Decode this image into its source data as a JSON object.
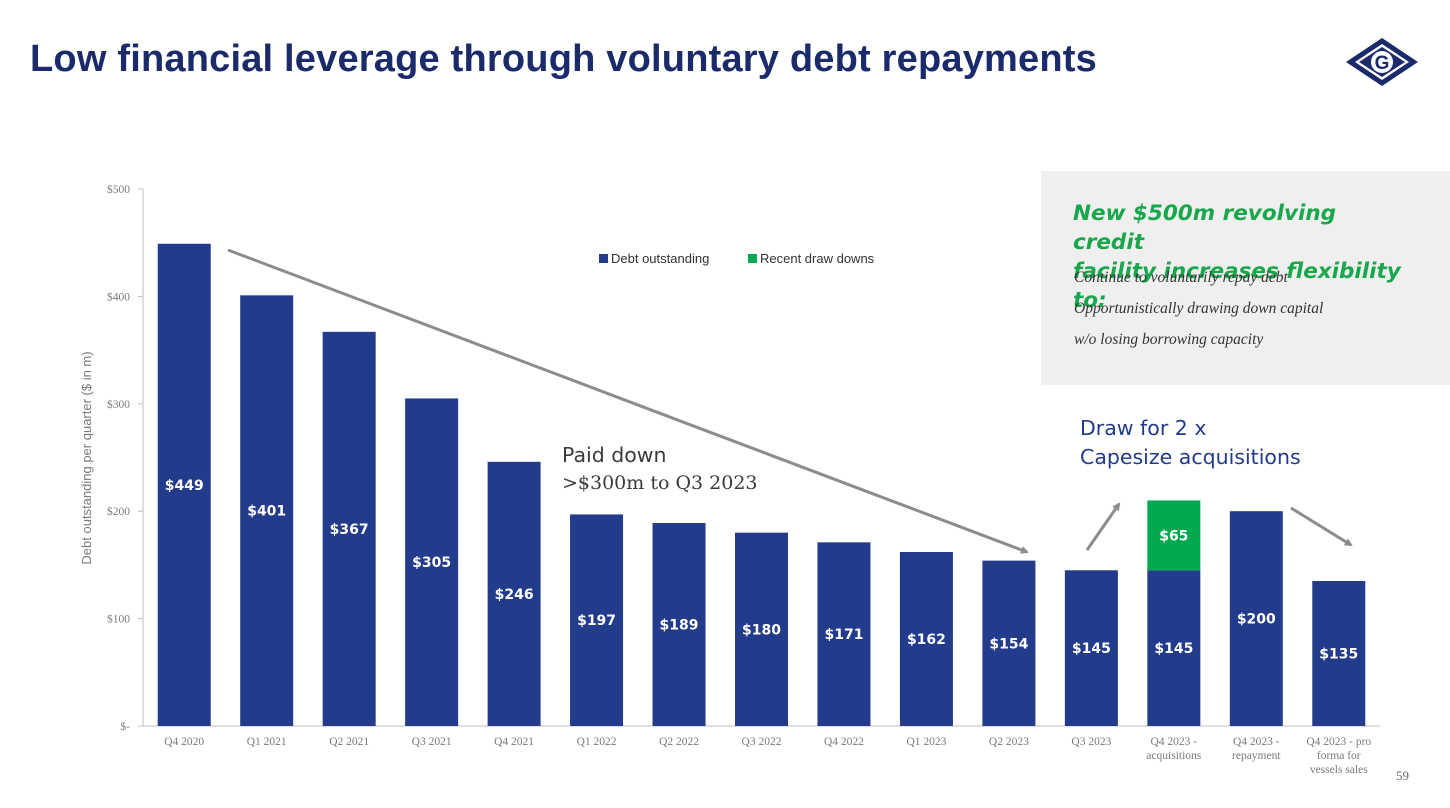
{
  "slide": {
    "title": "Low financial leverage through voluntary debt repayments",
    "page_number": "59",
    "logo_letter": "G"
  },
  "callout": {
    "headline_line1": "New $500m revolving credit",
    "headline_line2": "facility increases flexibility to:",
    "lines": [
      "Continue to voluntarily repay debt",
      "Opportunistically drawing down capital",
      "w/o losing borrowing capacity"
    ]
  },
  "annotations": {
    "paid_down_title": "Paid down",
    "paid_down_sub": ">$300m to Q3 2023",
    "draw_line1": "Draw for 2 x",
    "draw_line2": "Capesize acquisitions"
  },
  "colors": {
    "title": "#1b2a6b",
    "debt_outstanding": "#233b8b",
    "recent_draw_downs": "#00a94f",
    "arrow": "#8c8c8c",
    "axis_text": "#7a7a7a",
    "headline_green": "#19a74b",
    "annotation_blue": "#233a8a"
  },
  "chart_data": {
    "type": "bar",
    "stacked": true,
    "ylabel": "Debt outstanding per quarter ($ in m)",
    "ylim": [
      0,
      500
    ],
    "yticks": [
      {
        "value": 0,
        "label": "$-"
      },
      {
        "value": 100,
        "label": "$100"
      },
      {
        "value": 200,
        "label": "$200"
      },
      {
        "value": 300,
        "label": "$300"
      },
      {
        "value": 400,
        "label": "$400"
      },
      {
        "value": 500,
        "label": "$500"
      }
    ],
    "legend_position": "top-center",
    "categories": [
      [
        "Q4 2020"
      ],
      [
        "Q1 2021"
      ],
      [
        "Q2 2021"
      ],
      [
        "Q3 2021"
      ],
      [
        "Q4 2021"
      ],
      [
        "Q1 2022"
      ],
      [
        "Q2 2022"
      ],
      [
        "Q3 2022"
      ],
      [
        "Q4 2022"
      ],
      [
        "Q1 2023"
      ],
      [
        "Q2 2023"
      ],
      [
        "Q3 2023"
      ],
      [
        "Q4 2023 -",
        "acquisitions"
      ],
      [
        "Q4 2023 -",
        "repayment"
      ],
      [
        "Q4 2023 - pro",
        "forma for",
        "vessels sales"
      ]
    ],
    "series": [
      {
        "name": "Debt outstanding",
        "values": [
          449,
          401,
          367,
          305,
          246,
          197,
          189,
          180,
          171,
          162,
          154,
          145,
          145,
          200,
          135
        ],
        "labels": [
          "$449",
          "$401",
          "$367",
          "$305",
          "$246",
          "$197",
          "$189",
          "$180",
          "$171",
          "$162",
          "$154",
          "$145",
          "$145",
          "$200",
          "$135"
        ]
      },
      {
        "name": "Recent draw downs",
        "values": [
          0,
          0,
          0,
          0,
          0,
          0,
          0,
          0,
          0,
          0,
          0,
          0,
          65,
          0,
          0
        ],
        "labels": [
          "",
          "",
          "",
          "",
          "",
          "",
          "",
          "",
          "",
          "",
          "",
          "",
          "$65",
          "",
          ""
        ]
      }
    ]
  }
}
